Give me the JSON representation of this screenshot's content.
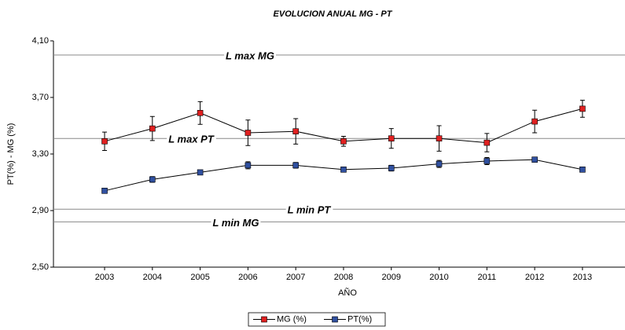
{
  "chart_data": {
    "type": "line",
    "title": "EVOLUCION ANUAL MG - PT",
    "x_label": "AÑO",
    "y_label": "PT(%) - MG (%)",
    "x": [
      2003,
      2004,
      2005,
      2006,
      2007,
      2008,
      2009,
      2010,
      2011,
      2012,
      2013
    ],
    "xlim": [
      2001.93,
      2013.89
    ],
    "xticks": [
      2003,
      2004,
      2005,
      2006,
      2007,
      2008,
      2009,
      2010,
      2011,
      2012,
      2013
    ],
    "ylim": [
      2.5,
      4.1
    ],
    "yticks": [
      {
        "value": 2.5,
        "label": "2,50"
      },
      {
        "value": 2.9,
        "label": "2,90"
      },
      {
        "value": 3.3,
        "label": "3,30"
      },
      {
        "value": 3.7,
        "label": "3,70"
      },
      {
        "value": 4.1,
        "label": "4,10"
      }
    ],
    "series": [
      {
        "name": "MG (%)",
        "color": "#e02020",
        "values": [
          3.39,
          3.48,
          3.59,
          3.45,
          3.46,
          3.39,
          3.41,
          3.41,
          3.38,
          3.53,
          3.62
        ],
        "errors": [
          0.065,
          0.085,
          0.08,
          0.09,
          0.09,
          0.035,
          0.07,
          0.09,
          0.065,
          0.08,
          0.06
        ]
      },
      {
        "name": "PT(%)",
        "color": "#3050a0",
        "values": [
          3.04,
          3.12,
          3.17,
          3.22,
          3.22,
          3.19,
          3.2,
          3.23,
          3.25,
          3.26,
          3.19
        ],
        "errors": [
          0.01,
          0.02,
          0.01,
          0.025,
          0.02,
          0.01,
          0.02,
          0.025,
          0.025,
          0.015,
          0.01
        ]
      }
    ],
    "reference_lines": [
      {
        "label": "L max MG",
        "value": 4.0
      },
      {
        "label": "L max PT",
        "value": 3.41
      },
      {
        "label": "L min PT",
        "value": 2.91
      },
      {
        "label": "L min MG",
        "value": 2.82
      }
    ]
  }
}
